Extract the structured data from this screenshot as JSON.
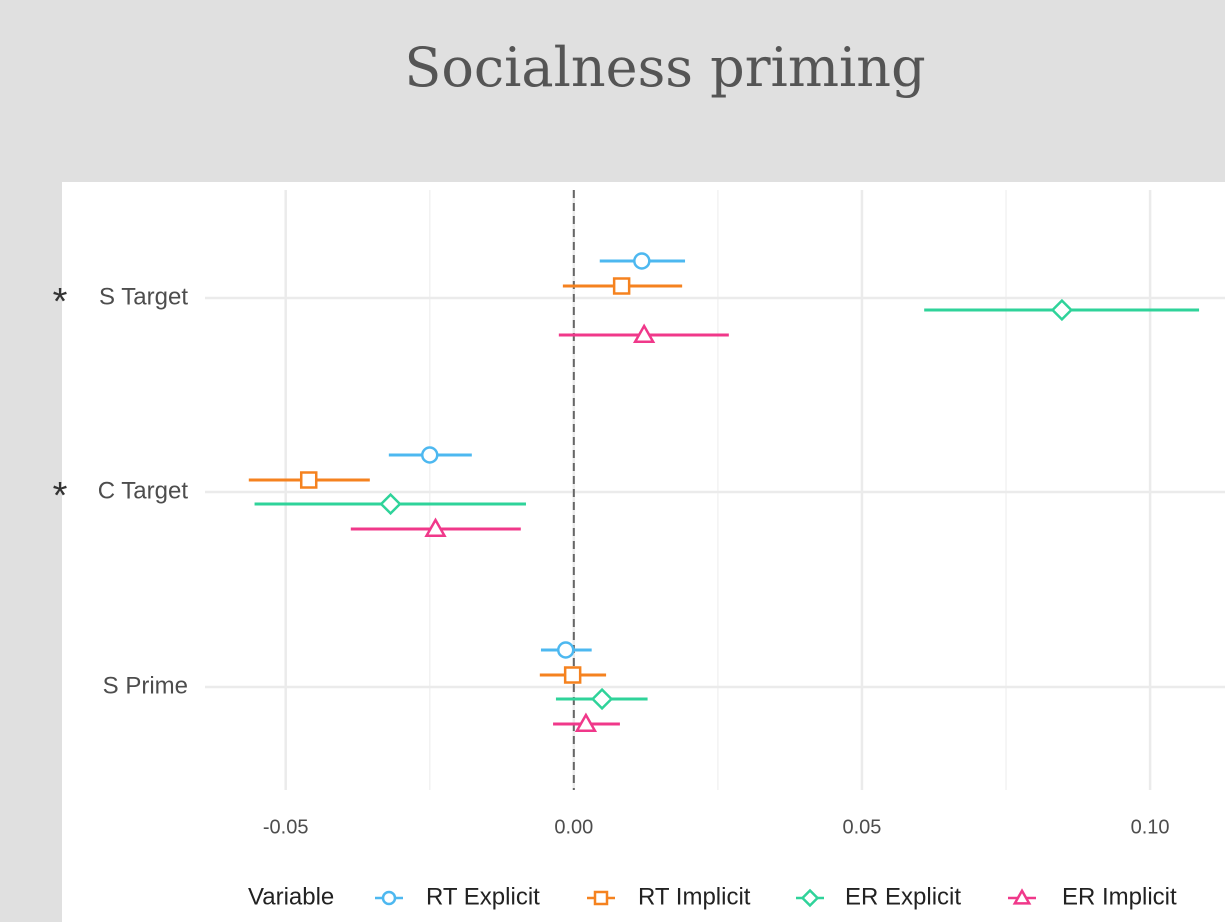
{
  "chart_data": {
    "type": "forest",
    "title": "Socialness priming",
    "categories": [
      "S Target",
      "C Target",
      "S Prime"
    ],
    "significance": [
      "*",
      "*",
      null
    ],
    "legend_title": "Variable",
    "xlim": [
      -0.064,
      0.113
    ],
    "xticks": [
      {
        "value": -0.05,
        "label": "-0.05"
      },
      {
        "value": 0,
        "label": "0.00"
      },
      {
        "value": 0.05,
        "label": "0.05"
      },
      {
        "value": 0.1,
        "label": "0.10"
      }
    ],
    "minor_xticks": [
      -0.025,
      0.025,
      0.075
    ],
    "vline": 0,
    "grid": true,
    "series": [
      {
        "name": "RT Explicit",
        "color": "#4db8f0",
        "shape": "circle",
        "values": [
          0.0118,
          -0.025,
          -0.0014
        ],
        "lower": [
          0.0045,
          -0.0321,
          -0.0057
        ],
        "upper": [
          0.0193,
          -0.0177,
          0.0031
        ]
      },
      {
        "name": "RT Implicit",
        "color": "#f5821f",
        "shape": "square",
        "values": [
          0.0083,
          -0.046,
          -0.0002
        ],
        "lower": [
          -0.0019,
          -0.0564,
          -0.0059
        ],
        "upper": [
          0.0188,
          -0.0354,
          0.0056
        ]
      },
      {
        "name": "ER Explicit",
        "color": "#2fd39a",
        "shape": "diamond",
        "values": [
          0.0847,
          -0.0318,
          0.0049
        ],
        "lower": [
          0.0608,
          -0.0554,
          -0.0031
        ],
        "upper": [
          0.1085,
          -0.0083,
          0.0128
        ]
      },
      {
        "name": "ER Implicit",
        "color": "#f0388a",
        "shape": "triangle",
        "values": [
          0.0122,
          -0.024,
          0.0021
        ],
        "lower": [
          -0.0026,
          -0.0387,
          -0.0036
        ],
        "upper": [
          0.0269,
          -0.0092,
          0.008
        ]
      }
    ]
  }
}
